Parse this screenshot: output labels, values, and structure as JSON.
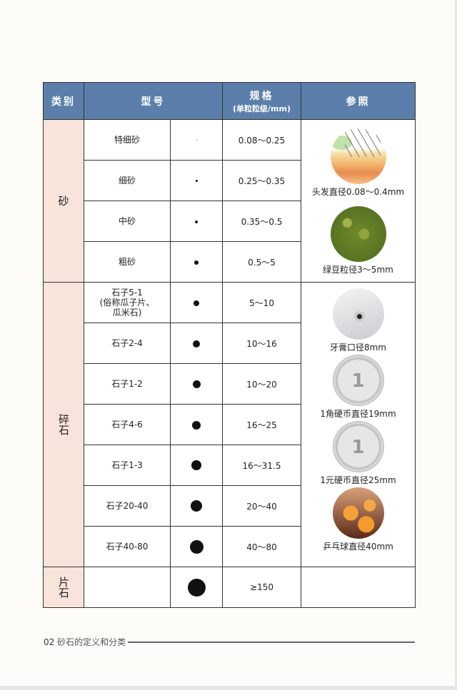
{
  "header": {
    "category": "类别",
    "model": "型号",
    "spec": "规格",
    "spec_unit": "(单粒粒级/mm)",
    "reference": "参照"
  },
  "groups": [
    {
      "category": "砂",
      "rows": [
        {
          "model": "特细砂",
          "spec": "0.08～0.25"
        },
        {
          "model": "细砂",
          "spec": "0.25～0.35"
        },
        {
          "model": "中砂",
          "spec": "0.35～0.5"
        },
        {
          "model": "粗砂",
          "spec": "0.5～5"
        }
      ],
      "references": [
        {
          "icon": "hair-cross-section-image",
          "label": "头发直径0.08～0.4mm"
        },
        {
          "icon": "mung-beans-image",
          "label": "绿豆粒径3～5mm"
        }
      ]
    },
    {
      "category": "碎石",
      "rows": [
        {
          "model": "石子5-1\n(俗称瓜子片、\n瓜米石)",
          "spec": "5～10"
        },
        {
          "model": "石子2-4",
          "spec": "10～16"
        },
        {
          "model": "石子1-2",
          "spec": "10～20"
        },
        {
          "model": "石子4-6",
          "spec": "16～25"
        },
        {
          "model": "石子1-3",
          "spec": "16～31.5"
        },
        {
          "model": "石子20-40",
          "spec": "20～40"
        },
        {
          "model": "石子40-80",
          "spec": "40～80"
        }
      ],
      "references": [
        {
          "icon": "toothpaste-tube-image",
          "label": "牙膏口径8mm"
        },
        {
          "icon": "one-jiao-coin-image",
          "label": "1角硬币直径19mm",
          "coin_text": "1"
        },
        {
          "icon": "one-yuan-coin-image",
          "label": "1元硬币直径25mm",
          "coin_text": "1"
        },
        {
          "icon": "ping-pong-balls-image",
          "label": "乒乓球直径40mm"
        }
      ]
    },
    {
      "category": "片石",
      "rows": [
        {
          "model": "",
          "spec": "≥150"
        }
      ],
      "references": []
    }
  ],
  "footer": {
    "page_number": "02",
    "section": "砂石的定义和分类"
  }
}
